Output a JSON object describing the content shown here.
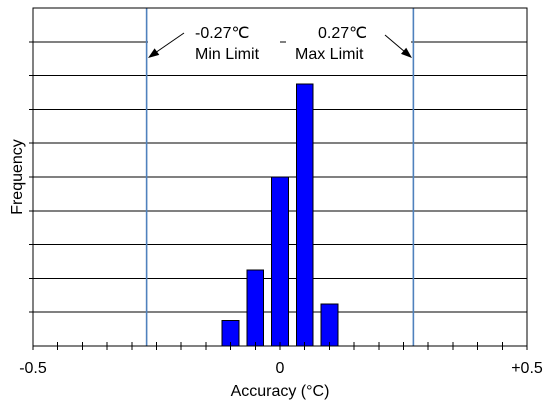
{
  "chart_data": {
    "type": "bar",
    "xlabel": "Accuracy (°C)",
    "ylabel": "Frequency",
    "xlim": [
      -0.5,
      0.5
    ],
    "ylim": [
      0,
      10
    ],
    "x_ticks": {
      "step": 0.05,
      "labels": [
        {
          "value": -0.5,
          "text": "-0.5"
        },
        {
          "value": 0,
          "text": "0"
        },
        {
          "value": 0.5,
          "text": "+0.5"
        }
      ]
    },
    "y_grid_step": 1,
    "y_tick_labels_shown": false,
    "grid_horizontal": true,
    "grid_vertical": false,
    "legend_shown": false,
    "x": [
      -0.1,
      -0.05,
      0,
      0.05,
      0.1
    ],
    "values": [
      0.75,
      2.25,
      5,
      7.75,
      1.25
    ],
    "bar_color": "#0000FF",
    "limit_line_color": "#4F81BD",
    "limit_lines": [
      {
        "x": -0.27,
        "value_label": "-0.27℃",
        "label": "Min Limit"
      },
      {
        "x": 0.27,
        "value_label": "0.27℃",
        "label": "Max Limit"
      }
    ]
  }
}
